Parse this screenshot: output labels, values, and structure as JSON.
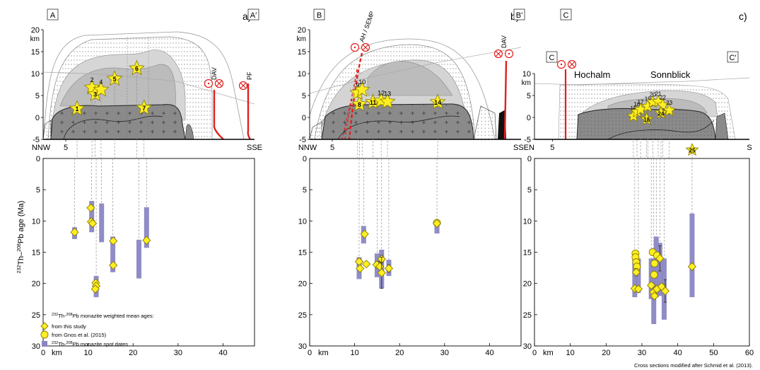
{
  "panels": [
    {
      "id": "a",
      "label": "a)",
      "box_left": "A",
      "box_right": "A′",
      "top_axis": {
        "unit": "km",
        "ticks": [
          "20",
          "15",
          "10",
          "5",
          "0",
          "-5"
        ]
      },
      "left_end": "NNW",
      "left_km": "5",
      "right_end": "SSE",
      "structures": [
        {
          "label": "DAV"
        },
        {
          "label": "PF"
        }
      ],
      "stars": [
        {
          "n": "1",
          "x_km": 7.5,
          "z": 2
        },
        {
          "n": "2",
          "x_km": 10.8,
          "z": 6.8
        },
        {
          "n": "3",
          "x_km": 11.5,
          "z": 5.3
        },
        {
          "n": "4",
          "x_km": 12.8,
          "z": 6.3
        },
        {
          "n": "5",
          "x_km": 15.8,
          "z": 8.8
        },
        {
          "n": "6",
          "x_km": 20.7,
          "z": 11.2
        },
        {
          "n": "7",
          "x_km": 22.3,
          "z": 2.2
        }
      ],
      "bottom_axis": {
        "xlabel": "km",
        "xticks": [
          "0",
          "10",
          "20",
          "30",
          "40"
        ],
        "xmax": 47,
        "yticks": [
          "0",
          "5",
          "10",
          "15",
          "20",
          "25",
          "30"
        ],
        "ymax": 30
      },
      "spot_bars": [
        {
          "x": 7.0,
          "y0": 11.0,
          "y1": 12.9
        },
        {
          "x": 10.8,
          "y0": 6.8,
          "y1": 11.8
        },
        {
          "x": 11.8,
          "y0": 18.8,
          "y1": 22.2
        },
        {
          "x": 13.0,
          "y0": 7.2,
          "y1": 13.4
        },
        {
          "x": 15.5,
          "y0": 12.5,
          "y1": 18.2
        },
        {
          "x": 21.3,
          "y0": 13.0,
          "y1": 19.2
        },
        {
          "x": 23.0,
          "y0": 7.8,
          "y1": 14.3
        }
      ],
      "weighted_ages": [
        {
          "x": 7.0,
          "age": 11.8,
          "err": 0.4,
          "src": "study"
        },
        {
          "x": 10.6,
          "age": 7.9,
          "err": 0.4,
          "src": "study"
        },
        {
          "x": 10.7,
          "age": 10.1,
          "err": 0.5,
          "src": "study"
        },
        {
          "x": 11.0,
          "age": 10.4,
          "err": 0.5,
          "src": "study"
        },
        {
          "x": 11.7,
          "age": 19.9,
          "err": 0.5,
          "src": "study"
        },
        {
          "x": 11.8,
          "age": 20.4,
          "err": 0.5,
          "src": "study"
        },
        {
          "x": 11.6,
          "age": 20.9,
          "err": 0.5,
          "src": "study"
        },
        {
          "x": 15.6,
          "age": 13.2,
          "err": 0.4,
          "src": "study"
        },
        {
          "x": 15.6,
          "age": 17.1,
          "err": 0.4,
          "src": "study"
        },
        {
          "x": 23.0,
          "age": 13.1,
          "err": 0.4,
          "src": "study"
        }
      ]
    },
    {
      "id": "b",
      "label": "b)",
      "box_left": "B",
      "box_right": "B′",
      "top_axis": {
        "unit": "km",
        "ticks": [
          "20",
          "15",
          "10",
          "5",
          "0",
          "-5"
        ]
      },
      "left_end": "NNW",
      "left_km": "5",
      "right_end": "SSE",
      "structures": [
        {
          "label": "AH / SEMP"
        },
        {
          "label": "DAV"
        }
      ],
      "stars": [
        {
          "n": "8",
          "x_km": 11.0,
          "z": 3.0
        },
        {
          "n": "9",
          "x_km": 10.6,
          "z": 5.6
        },
        {
          "n": "10",
          "x_km": 11.6,
          "z": 6.3
        },
        {
          "n": "11",
          "x_km": 14.0,
          "z": 3.5
        },
        {
          "n": "12",
          "x_km": 15.8,
          "z": 3.8
        },
        {
          "n": "13",
          "x_km": 17.2,
          "z": 3.6
        },
        {
          "n": "14",
          "x_km": 28.3,
          "z": 3.5
        }
      ],
      "bottom_axis": {
        "xlabel": "km",
        "xticks": [
          "0",
          "10",
          "20",
          "30",
          "40"
        ],
        "xmax": 47,
        "yticks": [
          "0",
          "5",
          "10",
          "15",
          "20",
          "25",
          "30"
        ],
        "ymax": 30
      },
      "spot_bars": [
        {
          "x": 11.0,
          "y0": 15.8,
          "y1": 19.3
        },
        {
          "x": 12.0,
          "y0": 10.8,
          "y1": 13.6
        },
        {
          "x": 15.0,
          "y0": 15.2,
          "y1": 19.0
        },
        {
          "x": 16.0,
          "y0": 14.6,
          "y1": 20.8
        },
        {
          "x": 17.6,
          "y0": 16.2,
          "y1": 18.8
        },
        {
          "x": 28.3,
          "y0": 9.8,
          "y1": 12.0
        }
      ],
      "weighted_ages": [
        {
          "x": 11.0,
          "age": 16.5,
          "err": 0.5,
          "src": "study"
        },
        {
          "x": 11.2,
          "age": 17.6,
          "err": 0.5,
          "src": "study"
        },
        {
          "x": 12.2,
          "age": 12.1,
          "err": 0.4,
          "src": "study"
        },
        {
          "x": 12.6,
          "age": 16.9,
          "err": 0.4,
          "src": "study"
        },
        {
          "x": 14.9,
          "age": 17.0,
          "err": 0.5,
          "src": "study"
        },
        {
          "x": 15.6,
          "age": 17.3,
          "err": 0.8,
          "src": "study"
        },
        {
          "x": 16.0,
          "age": 16.1,
          "err": 0.6,
          "src": "study"
        },
        {
          "x": 16.0,
          "age": 18.3,
          "err": 2.5,
          "src": "study"
        },
        {
          "x": 17.6,
          "age": 17.6,
          "err": 0.6,
          "src": "study"
        },
        {
          "x": 28.3,
          "age": 10.3,
          "err": 0.5,
          "src": "gnos"
        },
        {
          "x": 28.3,
          "age": 10.4,
          "err": 0.4,
          "src": "study"
        }
      ]
    },
    {
      "id": "c",
      "label": "c)",
      "box_left": "C",
      "box_right": "C′",
      "top_axis": {
        "unit": "km",
        "ticks": [
          "10",
          "5",
          "0",
          "-5"
        ]
      },
      "left_end": "N",
      "left_km": "5",
      "right_end": "S",
      "place_names": [
        "Hochalm",
        "Sonnblick"
      ],
      "stars": [
        {
          "n": "15",
          "x_km": 27.6,
          "z": 0.3
        },
        {
          "n": "16",
          "x_km": 28.6,
          "z": 1.3
        },
        {
          "n": "17",
          "x_km": 29.6,
          "z": 1.8
        },
        {
          "n": "18",
          "x_km": 31.3,
          "z": -0.4
        },
        {
          "n": "19",
          "x_km": 31.6,
          "z": 2.5
        },
        {
          "n": "20",
          "x_km": 33.0,
          "z": 3.5
        },
        {
          "n": "21",
          "x_km": 34.5,
          "z": 3.6
        },
        {
          "n": "22",
          "x_km": 35.8,
          "z": 2.8
        },
        {
          "n": "23",
          "x_km": 37.6,
          "z": 1.6
        },
        {
          "n": "24",
          "x_km": 35.3,
          "z": 1.0
        },
        {
          "n": "25",
          "x_km": 44.0,
          "z": -5.6
        }
      ],
      "bottom_axis": {
        "xlabel": "km",
        "xticks": [
          "0",
          "10",
          "20",
          "30",
          "40",
          "50",
          "60"
        ],
        "xmax": 60,
        "yticks": [
          "0",
          "5",
          "10",
          "15",
          "20",
          "25",
          "30"
        ],
        "ymax": 30
      },
      "spot_bars": [
        {
          "x": 28.0,
          "y0": 15.0,
          "y1": 22.2
        },
        {
          "x": 29.0,
          "y0": 16.0,
          "y1": 21.5
        },
        {
          "x": 32.6,
          "y0": 16.0,
          "y1": 22.5
        },
        {
          "x": 33.3,
          "y0": 16.0,
          "y1": 26.5
        },
        {
          "x": 34.0,
          "y0": 12.5,
          "y1": 22.2
        },
        {
          "x": 35.0,
          "y0": 13.5,
          "y1": 22.0
        },
        {
          "x": 36.2,
          "y0": 16.0,
          "y1": 25.8
        },
        {
          "x": 44.0,
          "y0": 8.8,
          "y1": 22.2
        }
      ],
      "weighted_ages": [
        {
          "x": 28.2,
          "age": 15.2,
          "err": 0.5,
          "src": "gnos"
        },
        {
          "x": 28.2,
          "age": 15.8,
          "err": 0.5,
          "src": "gnos"
        },
        {
          "x": 28.4,
          "age": 16.6,
          "err": 0.5,
          "src": "gnos"
        },
        {
          "x": 28.6,
          "age": 17.3,
          "err": 0.5,
          "src": "gnos"
        },
        {
          "x": 28.4,
          "age": 18.2,
          "err": 0.6,
          "src": "study"
        },
        {
          "x": 28.0,
          "age": 20.8,
          "err": 0.4,
          "src": "study"
        },
        {
          "x": 29.0,
          "age": 20.9,
          "err": 0.5,
          "src": "study"
        },
        {
          "x": 32.6,
          "age": 20.3,
          "err": 0.4,
          "src": "study"
        },
        {
          "x": 33.0,
          "age": 15.0,
          "err": 0.5,
          "src": "gnos"
        },
        {
          "x": 33.5,
          "age": 16.8,
          "err": 0.5,
          "src": "gnos"
        },
        {
          "x": 33.4,
          "age": 18.6,
          "err": 0.5,
          "src": "gnos"
        },
        {
          "x": 33.2,
          "age": 21.4,
          "err": 0.5,
          "src": "study"
        },
        {
          "x": 33.5,
          "age": 22.0,
          "err": 0.5,
          "src": "study"
        },
        {
          "x": 34.2,
          "age": 15.5,
          "err": 0.5,
          "src": "gnos"
        },
        {
          "x": 34.2,
          "age": 20.9,
          "err": 0.5,
          "src": "study"
        },
        {
          "x": 35.0,
          "age": 16.0,
          "err": 2.0,
          "src": "study"
        },
        {
          "x": 35.5,
          "age": 20.5,
          "err": 0.5,
          "src": "study"
        },
        {
          "x": 36.5,
          "age": 21.2,
          "err": 1.8,
          "src": "study"
        },
        {
          "x": 44.0,
          "age": 17.3,
          "err": 0.5,
          "src": "study"
        }
      ]
    }
  ],
  "y_axis_title": {
    "pre": "232",
    "main1": "Th–",
    "pre2": "208",
    "main2": "Pb age (Ma)"
  },
  "legend": {
    "title_sup1": "232",
    "title_mid": "Th-",
    "title_sup2": "208",
    "title_rest": "Pb monazite weighted mean ages:",
    "item_study": "from this study",
    "item_gnos": "from Gnos et al. (2015)",
    "item_spot_sup1": "232",
    "item_spot_mid": "Th-",
    "item_spot_sup2": "208",
    "item_spot_rest": "Pb monazite spot dates"
  },
  "credit": "Cross sections modified after Schmid et al. (2013).",
  "colors": {
    "star": "#ffee22",
    "star_stroke": "#8a7d00",
    "bar": "#8a86c2",
    "dark": "#7f7f7f",
    "mid": "#b3b3b3",
    "light": "#d9d9d9",
    "fault": "#e0201e"
  }
}
